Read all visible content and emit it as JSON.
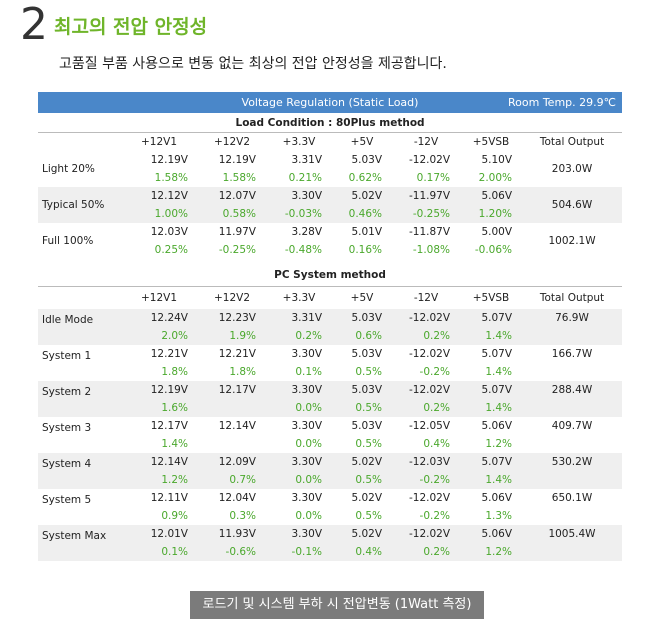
{
  "header": {
    "number": "2",
    "title": "최고의 전압 안정성",
    "subtitle": "고품질 부품 사용으로 변동 없는 최상의 전압 안정성을 제공합니다."
  },
  "bar": {
    "title": "Voltage Regulation (Static Load)",
    "room_temp": "Room Temp. 29.9℃"
  },
  "section1": {
    "title": "Load Condition : 80Plus method",
    "columns": [
      "+12V1",
      "+12V2",
      "+3.3V",
      "+5V",
      "-12V",
      "+5VSB",
      "Total Output"
    ],
    "rows": [
      {
        "label": "Light 20%",
        "volts": [
          "12.19V",
          "12.19V",
          "3.31V",
          "5.03V",
          "-12.02V",
          "5.10V"
        ],
        "pcts": [
          "1.58%",
          "1.58%",
          "0.21%",
          "0.62%",
          "0.17%",
          "2.00%"
        ],
        "total": "203.0W"
      },
      {
        "label": "Typical 50%",
        "volts": [
          "12.12V",
          "12.07V",
          "3.30V",
          "5.02V",
          "-11.97V",
          "5.06V"
        ],
        "pcts": [
          "1.00%",
          "0.58%",
          "-0.03%",
          "0.46%",
          "-0.25%",
          "1.20%"
        ],
        "total": "504.6W"
      },
      {
        "label": "Full 100%",
        "volts": [
          "12.03V",
          "11.97V",
          "3.28V",
          "5.01V",
          "-11.87V",
          "5.00V"
        ],
        "pcts": [
          "0.25%",
          "-0.25%",
          "-0.48%",
          "0.16%",
          "-1.08%",
          "-0.06%"
        ],
        "total": "1002.1W"
      }
    ]
  },
  "section2": {
    "title": "PC System method",
    "columns": [
      "+12V1",
      "+12V2",
      "+3.3V",
      "+5V",
      "-12V",
      "+5VSB",
      "Total Output"
    ],
    "rows": [
      {
        "label": "Idle Mode",
        "volts": [
          "12.24V",
          "12.23V",
          "3.31V",
          "5.03V",
          "-12.02V",
          "5.07V"
        ],
        "pcts": [
          "2.0%",
          "1.9%",
          "0.2%",
          "0.6%",
          "0.2%",
          "1.4%"
        ],
        "total": "76.9W"
      },
      {
        "label": "System 1",
        "volts": [
          "12.21V",
          "12.21V",
          "3.30V",
          "5.03V",
          "-12.02V",
          "5.07V"
        ],
        "pcts": [
          "1.8%",
          "1.8%",
          "0.1%",
          "0.5%",
          "-0.2%",
          "1.4%"
        ],
        "total": "166.7W"
      },
      {
        "label": "System 2",
        "volts": [
          "12.19V",
          "12.17V",
          "3.30V",
          "5.03V",
          "-12.02V",
          "5.07V"
        ],
        "pcts": [
          "1.6%",
          "",
          "0.0%",
          "0.5%",
          "0.2%",
          "1.4%"
        ],
        "total": "288.4W"
      },
      {
        "label": "System 3",
        "volts": [
          "12.17V",
          "12.14V",
          "3.30V",
          "5.03V",
          "-12.05V",
          "5.06V"
        ],
        "pcts": [
          "1.4%",
          "",
          "0.0%",
          "0.5%",
          "0.4%",
          "1.2%"
        ],
        "total": "409.7W"
      },
      {
        "label": "System 4",
        "volts": [
          "12.14V",
          "12.09V",
          "3.30V",
          "5.02V",
          "-12.03V",
          "5.07V"
        ],
        "pcts": [
          "1.2%",
          "0.7%",
          "0.0%",
          "0.5%",
          "-0.2%",
          "1.4%"
        ],
        "total": "530.2W"
      },
      {
        "label": "System 5",
        "volts": [
          "12.11V",
          "12.04V",
          "3.30V",
          "5.02V",
          "-12.02V",
          "5.06V"
        ],
        "pcts": [
          "0.9%",
          "0.3%",
          "0.0%",
          "0.5%",
          "-0.2%",
          "1.3%"
        ],
        "total": "650.1W"
      },
      {
        "label": "System Max",
        "volts": [
          "12.01V",
          "11.93V",
          "3.30V",
          "5.02V",
          "-12.02V",
          "5.06V"
        ],
        "pcts": [
          "0.1%",
          "-0.6%",
          "-0.1%",
          "0.4%",
          "0.2%",
          "1.2%"
        ],
        "total": "1005.4W"
      }
    ]
  },
  "footer": "로드기 및 시스템 부하 시 전압변동 (1Watt 측정)",
  "colors": {
    "accent_green": "#6fb52a",
    "bar_blue": "#4a87c9",
    "pct_green": "#4aa82c",
    "footer_gray": "#7b7b7b"
  }
}
